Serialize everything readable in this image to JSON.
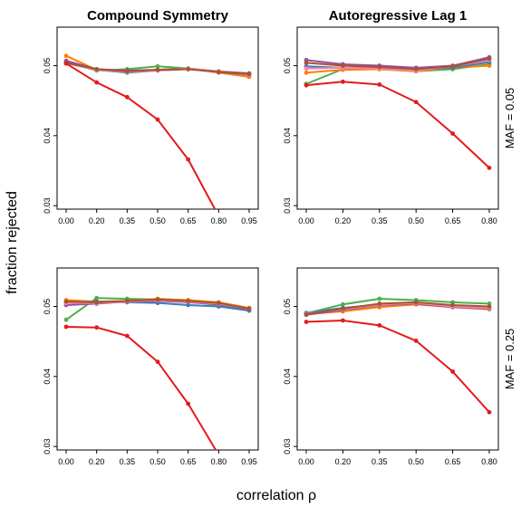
{
  "figure": {
    "ylabel": "fraction rejected",
    "xlabel": "correlation ρ"
  },
  "colors": {
    "red": "#e41a1c",
    "orange": "#ff7f00",
    "green": "#4daf4a",
    "blue": "#377eb8",
    "purple": "#984ea3",
    "pink": "#f781bf",
    "brown": "#a65628"
  },
  "chart_data": [
    {
      "type": "line",
      "title": "Compound Symmetry",
      "row_label": "",
      "xlabel": "correlation ρ",
      "ylabel": "fraction rejected",
      "x": [
        0.0,
        0.2,
        0.35,
        0.5,
        0.65,
        0.8,
        0.95
      ],
      "x_tick_labels": [
        "0.00",
        "0.20",
        "0.35",
        "0.50",
        "0.65",
        "0.80",
        "0.95"
      ],
      "ylim": [
        0.0295,
        0.0555
      ],
      "y_ticks": [
        0.03,
        0.04,
        0.05
      ],
      "grid": false,
      "series": [
        {
          "color": "red",
          "values": [
            0.0503,
            0.0476,
            0.0455,
            0.0423,
            0.0366,
            0.0285,
            0.02
          ]
        },
        {
          "color": "orange",
          "values": [
            0.0514,
            0.0494,
            0.0492,
            0.0494,
            0.0496,
            0.049,
            0.0484
          ]
        },
        {
          "color": "green",
          "values": [
            0.0505,
            0.0493,
            0.0495,
            0.0499,
            0.0496,
            0.0491,
            0.0487
          ]
        },
        {
          "color": "blue",
          "values": [
            0.0505,
            0.0494,
            0.049,
            0.0493,
            0.0495,
            0.0491,
            0.0487
          ]
        },
        {
          "color": "purple",
          "values": [
            0.0507,
            0.0495,
            0.0493,
            0.0494,
            0.0496,
            0.0492,
            0.0489
          ]
        },
        {
          "color": "pink",
          "values": [
            0.0503,
            0.0494,
            0.0491,
            0.0493,
            0.0496,
            0.0492,
            0.0487
          ]
        },
        {
          "color": "brown",
          "values": [
            0.0504,
            0.0495,
            0.0492,
            0.0494,
            0.0495,
            0.0491,
            0.0488
          ]
        }
      ]
    },
    {
      "type": "line",
      "title": "Autoregressive Lag 1",
      "row_label": "MAF = 0.05",
      "xlabel": "correlation ρ",
      "ylabel": "fraction rejected",
      "x": [
        0.0,
        0.2,
        0.35,
        0.5,
        0.65,
        0.8
      ],
      "x_tick_labels": [
        "0.00",
        "0.20",
        "0.35",
        "0.50",
        "0.65",
        "0.80"
      ],
      "ylim": [
        0.0295,
        0.0555
      ],
      "y_ticks": [
        0.03,
        0.04,
        0.05
      ],
      "grid": false,
      "series": [
        {
          "color": "red",
          "values": [
            0.0472,
            0.0477,
            0.0473,
            0.0448,
            0.0403,
            0.0354
          ]
        },
        {
          "color": "green",
          "values": [
            0.0474,
            0.0495,
            0.0495,
            0.0492,
            0.0495,
            0.0502
          ]
        },
        {
          "color": "orange",
          "values": [
            0.049,
            0.0494,
            0.0495,
            0.0492,
            0.0497,
            0.05
          ]
        },
        {
          "color": "blue",
          "values": [
            0.0499,
            0.0497,
            0.0497,
            0.0494,
            0.0497,
            0.0505
          ]
        },
        {
          "color": "purple",
          "values": [
            0.0508,
            0.0502,
            0.05,
            0.0497,
            0.05,
            0.0512
          ]
        },
        {
          "color": "pink",
          "values": [
            0.0496,
            0.0497,
            0.0496,
            0.0493,
            0.0499,
            0.0508
          ]
        },
        {
          "color": "brown",
          "values": [
            0.0504,
            0.05,
            0.0498,
            0.0495,
            0.0499,
            0.051
          ]
        }
      ]
    },
    {
      "type": "line",
      "title": "",
      "row_label": "",
      "xlabel": "correlation ρ",
      "ylabel": "fraction rejected",
      "x": [
        0.0,
        0.2,
        0.35,
        0.5,
        0.65,
        0.8,
        0.95
      ],
      "x_tick_labels": [
        "0.00",
        "0.20",
        "0.35",
        "0.50",
        "0.65",
        "0.80",
        "0.95"
      ],
      "ylim": [
        0.0295,
        0.0555
      ],
      "y_ticks": [
        0.03,
        0.04,
        0.05
      ],
      "grid": false,
      "series": [
        {
          "color": "red",
          "values": [
            0.0471,
            0.047,
            0.0458,
            0.0421,
            0.0361,
            0.0288,
            0.02
          ]
        },
        {
          "color": "green",
          "values": [
            0.0481,
            0.0512,
            0.0511,
            0.051,
            0.0507,
            0.0502,
            0.0495
          ]
        },
        {
          "color": "orange",
          "values": [
            0.0509,
            0.0507,
            0.0508,
            0.0511,
            0.0509,
            0.0506,
            0.0498
          ]
        },
        {
          "color": "blue",
          "values": [
            0.0506,
            0.0507,
            0.0506,
            0.0505,
            0.0502,
            0.05,
            0.0494
          ]
        },
        {
          "color": "purple",
          "values": [
            0.0502,
            0.0504,
            0.0507,
            0.0508,
            0.0506,
            0.0503,
            0.0496
          ]
        },
        {
          "color": "pink",
          "values": [
            0.0505,
            0.0505,
            0.0507,
            0.0509,
            0.0507,
            0.0504,
            0.0497
          ]
        },
        {
          "color": "brown",
          "values": [
            0.0507,
            0.0506,
            0.0508,
            0.051,
            0.0508,
            0.0505,
            0.0497
          ]
        }
      ]
    },
    {
      "type": "line",
      "title": "",
      "row_label": "MAF = 0.25",
      "xlabel": "correlation ρ",
      "ylabel": "fraction rejected",
      "x": [
        0.0,
        0.2,
        0.35,
        0.5,
        0.65,
        0.8
      ],
      "x_tick_labels": [
        "0.00",
        "0.20",
        "0.35",
        "0.50",
        "0.65",
        "0.80"
      ],
      "ylim": [
        0.0295,
        0.0555
      ],
      "y_ticks": [
        0.03,
        0.04,
        0.05
      ],
      "grid": false,
      "series": [
        {
          "color": "red",
          "values": [
            0.0478,
            0.048,
            0.0473,
            0.0451,
            0.0407,
            0.0349
          ]
        },
        {
          "color": "green",
          "values": [
            0.049,
            0.0503,
            0.0511,
            0.0509,
            0.0506,
            0.0504
          ]
        },
        {
          "color": "orange",
          "values": [
            0.0489,
            0.0493,
            0.0499,
            0.0503,
            0.0499,
            0.0496
          ]
        },
        {
          "color": "blue",
          "values": [
            0.0491,
            0.0498,
            0.0503,
            0.0505,
            0.05,
            0.0499
          ]
        },
        {
          "color": "purple",
          "values": [
            0.0488,
            0.0495,
            0.0502,
            0.0504,
            0.0499,
            0.0497
          ]
        },
        {
          "color": "pink",
          "values": [
            0.049,
            0.0496,
            0.0503,
            0.0505,
            0.05,
            0.0498
          ]
        },
        {
          "color": "brown",
          "values": [
            0.0489,
            0.0497,
            0.0504,
            0.0506,
            0.0502,
            0.05
          ]
        }
      ]
    }
  ]
}
